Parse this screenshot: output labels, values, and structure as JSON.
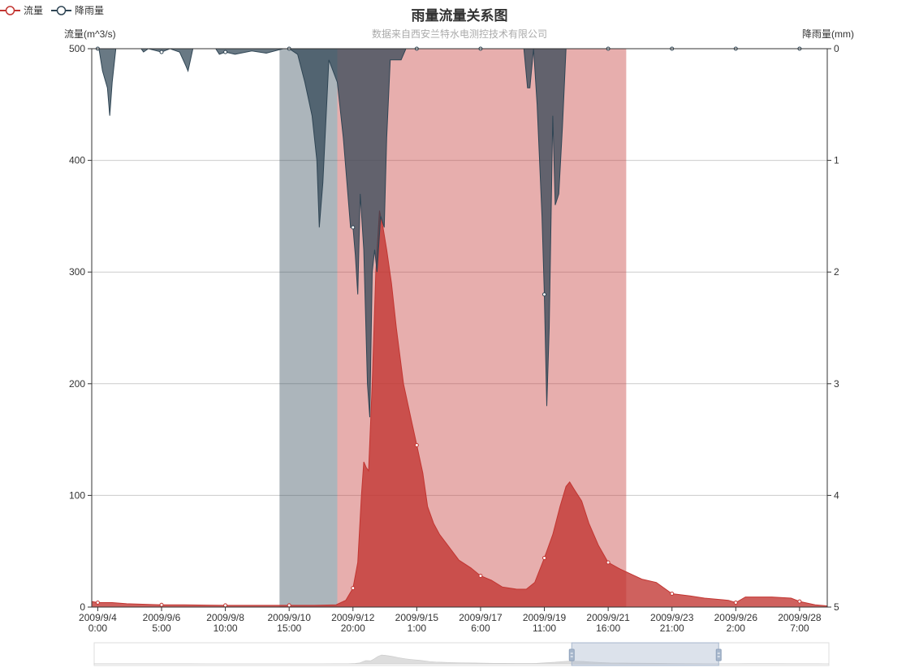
{
  "legend": [
    {
      "name": "流量",
      "color": "#c23531"
    },
    {
      "name": "降雨量",
      "color": "#2f4554"
    }
  ],
  "chart_data": {
    "type": "area",
    "title": "雨量流量关系图",
    "subtitle": "数据来自西安兰特水电测控技术有限公司",
    "y_left": {
      "label": "流量(m^3/s)",
      "min": 0,
      "max": 500,
      "ticks": [
        0,
        100,
        200,
        300,
        400,
        500
      ]
    },
    "y_right": {
      "label": "降雨量(mm)",
      "min": 0,
      "max": 5,
      "inverse": true,
      "ticks": [
        0,
        1,
        2,
        3,
        4,
        5
      ]
    },
    "x_range": [
      "2009/9/3 19:00",
      "2009/9/29 6:00"
    ],
    "x_ticks": [
      {
        "t": "2009/9/4 0:00",
        "label": [
          "2009/9/4",
          "0:00"
        ]
      },
      {
        "t": "2009/9/6 5:00",
        "label": [
          "2009/9/6",
          "5:00"
        ]
      },
      {
        "t": "2009/9/8 10:00",
        "label": [
          "2009/9/8",
          "10:00"
        ]
      },
      {
        "t": "2009/9/10 15:00",
        "label": [
          "2009/9/10",
          "15:00"
        ]
      },
      {
        "t": "2009/9/12 20:00",
        "label": [
          "2009/9/12",
          "20:00"
        ]
      },
      {
        "t": "2009/9/15 1:00",
        "label": [
          "2009/9/15",
          "1:00"
        ]
      },
      {
        "t": "2009/9/17 6:00",
        "label": [
          "2009/9/17",
          "6:00"
        ]
      },
      {
        "t": "2009/9/19 11:00",
        "label": [
          "2009/9/19",
          "11:00"
        ]
      },
      {
        "t": "2009/9/21 16:00",
        "label": [
          "2009/9/21",
          "16:00"
        ]
      },
      {
        "t": "2009/9/23 21:00",
        "label": [
          "2009/9/23",
          "21:00"
        ]
      },
      {
        "t": "2009/9/26 2:00",
        "label": [
          "2009/9/26",
          "2:00"
        ]
      },
      {
        "t": "2009/9/28 7:00",
        "label": [
          "2009/9/28",
          "7:00"
        ]
      }
    ],
    "mark_areas": [
      {
        "series": "降雨量",
        "from": "2009/9/10 7:00",
        "to": "2009/9/12 7:00",
        "color": "#2f4554",
        "opacity": 0.4
      },
      {
        "series": "流量",
        "from": "2009/9/12 7:00",
        "to": "2009/9/22 7:00",
        "color": "#c23531",
        "opacity": 0.4
      }
    ],
    "series": [
      {
        "name": "流量",
        "axis": "left",
        "color": "#c23531",
        "points": [
          [
            "2009/9/3 19:00",
            5
          ],
          [
            "2009/9/4 0:00",
            4
          ],
          [
            "2009/9/4 12:00",
            4
          ],
          [
            "2009/9/5 0:00",
            3
          ],
          [
            "2009/9/6 5:00",
            2
          ],
          [
            "2009/9/7 0:00",
            2
          ],
          [
            "2009/9/8 10:00",
            1.5
          ],
          [
            "2009/9/9 12:00",
            1.5
          ],
          [
            "2009/9/10 15:00",
            1.5
          ],
          [
            "2009/9/11 12:00",
            1.5
          ],
          [
            "2009/9/12 6:00",
            2
          ],
          [
            "2009/9/12 14:00",
            6
          ],
          [
            "2009/9/12 20:00",
            17
          ],
          [
            "2009/9/13 0:00",
            40
          ],
          [
            "2009/9/13 3:00",
            100
          ],
          [
            "2009/9/13 5:00",
            130
          ],
          [
            "2009/9/13 7:00",
            125
          ],
          [
            "2009/9/13 9:00",
            122
          ],
          [
            "2009/9/13 12:00",
            200
          ],
          [
            "2009/9/13 15:00",
            300
          ],
          [
            "2009/9/13 18:00",
            355
          ],
          [
            "2009/9/13 21:00",
            340
          ],
          [
            "2009/9/14 0:00",
            320
          ],
          [
            "2009/9/14 4:00",
            290
          ],
          [
            "2009/9/14 8:00",
            250
          ],
          [
            "2009/9/14 14:00",
            200
          ],
          [
            "2009/9/14 20:00",
            170
          ],
          [
            "2009/9/15 1:00",
            145
          ],
          [
            "2009/9/15 6:00",
            120
          ],
          [
            "2009/9/15 10:00",
            90
          ],
          [
            "2009/9/15 15:00",
            75
          ],
          [
            "2009/9/15 20:00",
            65
          ],
          [
            "2009/9/16 3:00",
            55
          ],
          [
            "2009/9/16 12:00",
            42
          ],
          [
            "2009/9/16 22:00",
            35
          ],
          [
            "2009/9/17 6:00",
            28
          ],
          [
            "2009/9/17 15:00",
            24
          ],
          [
            "2009/9/18 0:00",
            18
          ],
          [
            "2009/9/18 12:00",
            16
          ],
          [
            "2009/9/18 20:00",
            16
          ],
          [
            "2009/9/19 3:00",
            22
          ],
          [
            "2009/9/19 11:00",
            44
          ],
          [
            "2009/9/19 18:00",
            65
          ],
          [
            "2009/9/20 0:00",
            90
          ],
          [
            "2009/9/20 5:00",
            108
          ],
          [
            "2009/9/20 8:00",
            112
          ],
          [
            "2009/9/20 12:00",
            105
          ],
          [
            "2009/9/20 18:00",
            95
          ],
          [
            "2009/9/21 0:00",
            75
          ],
          [
            "2009/9/21 8:00",
            55
          ],
          [
            "2009/9/21 16:00",
            40
          ],
          [
            "2009/9/22 2:00",
            34
          ],
          [
            "2009/9/22 10:00",
            30
          ],
          [
            "2009/9/22 20:00",
            25
          ],
          [
            "2009/9/23 8:00",
            22
          ],
          [
            "2009/9/23 21:00",
            12
          ],
          [
            "2009/9/24 12:00",
            10
          ],
          [
            "2009/9/25 0:00",
            8
          ],
          [
            "2009/9/25 20:00",
            6
          ],
          [
            "2009/9/26 2:00",
            4
          ],
          [
            "2009/9/26 10:00",
            9
          ],
          [
            "2009/9/27 8:00",
            9
          ],
          [
            "2009/9/28 0:00",
            8
          ],
          [
            "2009/9/28 7:00",
            5
          ],
          [
            "2009/9/28 20:00",
            2
          ],
          [
            "2009/9/29 6:00",
            1
          ]
        ]
      },
      {
        "name": "降雨量",
        "axis": "right",
        "color": "#2f4554",
        "points": [
          [
            "2009/9/3 19:00",
            0
          ],
          [
            "2009/9/4 1:00",
            0
          ],
          [
            "2009/9/4 4:00",
            0.2
          ],
          [
            "2009/9/4 8:00",
            0.35
          ],
          [
            "2009/9/4 10:00",
            0.6
          ],
          [
            "2009/9/4 12:00",
            0.3
          ],
          [
            "2009/9/4 15:00",
            0
          ],
          [
            "2009/9/5 12:00",
            0
          ],
          [
            "2009/9/5 14:00",
            0.03
          ],
          [
            "2009/9/5 18:00",
            0
          ],
          [
            "2009/9/6 5:00",
            0.03
          ],
          [
            "2009/9/6 12:00",
            0
          ],
          [
            "2009/9/6 20:00",
            0.03
          ],
          [
            "2009/9/7 1:00",
            0.15
          ],
          [
            "2009/9/7 3:00",
            0.2
          ],
          [
            "2009/9/7 5:00",
            0.1
          ],
          [
            "2009/9/7 7:00",
            0
          ],
          [
            "2009/9/8 2:00",
            0
          ],
          [
            "2009/9/8 5:00",
            0.05
          ],
          [
            "2009/9/8 10:00",
            0.03
          ],
          [
            "2009/9/8 18:00",
            0.05
          ],
          [
            "2009/9/9 8:00",
            0.02
          ],
          [
            "2009/9/9 20:00",
            0.04
          ],
          [
            "2009/9/10 10:00",
            0
          ],
          [
            "2009/9/10 15:00",
            0
          ],
          [
            "2009/9/10 22:00",
            0.05
          ],
          [
            "2009/9/11 4:00",
            0.3
          ],
          [
            "2009/9/11 10:00",
            0.6
          ],
          [
            "2009/9/11 14:00",
            1.0
          ],
          [
            "2009/9/11 16:00",
            1.6
          ],
          [
            "2009/9/11 19:00",
            1.2
          ],
          [
            "2009/9/12 0:00",
            0.1
          ],
          [
            "2009/9/12 7:00",
            0.3
          ],
          [
            "2009/9/12 12:00",
            0.8
          ],
          [
            "2009/9/12 18:00",
            1.6
          ],
          [
            "2009/9/12 20:00",
            1.6
          ],
          [
            "2009/9/12 22:00",
            1.85
          ],
          [
            "2009/9/13 0:00",
            2.2
          ],
          [
            "2009/9/13 2:00",
            1.3
          ],
          [
            "2009/9/13 5:00",
            1.8
          ],
          [
            "2009/9/13 8:00",
            3.0
          ],
          [
            "2009/9/13 10:00",
            3.3
          ],
          [
            "2009/9/13 12:00",
            2.0
          ],
          [
            "2009/9/13 14:00",
            1.8
          ],
          [
            "2009/9/13 16:00",
            2.0
          ],
          [
            "2009/9/13 19:00",
            1.5
          ],
          [
            "2009/9/13 22:00",
            1.6
          ],
          [
            "2009/9/14 0:00",
            0.8
          ],
          [
            "2009/9/14 3:00",
            0.1
          ],
          [
            "2009/9/14 8:00",
            0.1
          ],
          [
            "2009/9/14 12:00",
            0.1
          ],
          [
            "2009/9/14 16:00",
            0
          ],
          [
            "2009/9/15 1:00",
            0
          ],
          [
            "2009/9/17 6:00",
            0
          ],
          [
            "2009/9/18 18:00",
            0
          ],
          [
            "2009/9/18 21:00",
            0.35
          ],
          [
            "2009/9/18 23:00",
            0.35
          ],
          [
            "2009/9/19 2:00",
            0
          ],
          [
            "2009/9/19 5:00",
            0.5
          ],
          [
            "2009/9/19 9:00",
            1.5
          ],
          [
            "2009/9/19 11:00",
            2.2
          ],
          [
            "2009/9/19 13:00",
            3.2
          ],
          [
            "2009/9/19 15:00",
            2.5
          ],
          [
            "2009/9/19 18:00",
            0.6
          ],
          [
            "2009/9/19 20:00",
            1.4
          ],
          [
            "2009/9/19 23:00",
            1.3
          ],
          [
            "2009/9/20 2:00",
            0.7
          ],
          [
            "2009/9/20 5:00",
            0
          ],
          [
            "2009/9/21 16:00",
            0
          ],
          [
            "2009/9/29 6:00",
            0
          ]
        ]
      }
    ],
    "data_zoom": {
      "start": 0.65,
      "end": 0.85
    }
  }
}
